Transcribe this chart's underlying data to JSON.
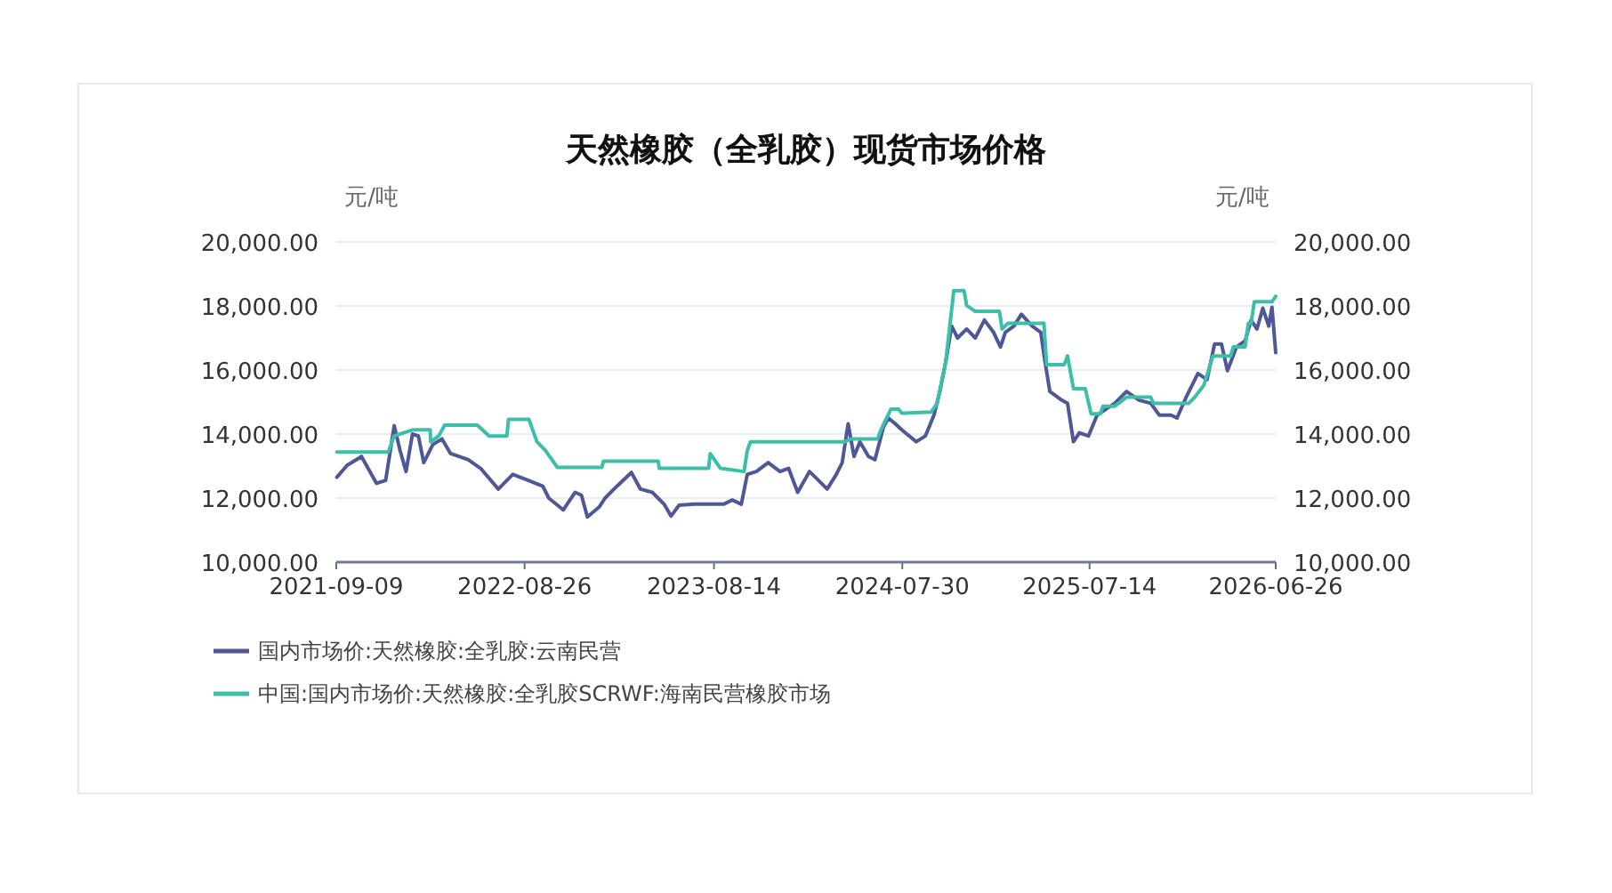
{
  "chart_data": {
    "type": "line",
    "title": "天然橡胶（全乳胶）现货市场价格",
    "ylabel": "元/吨",
    "y2label": "元/吨",
    "xlim": [
      "2021-09-09",
      "2026-06-26"
    ],
    "xticks": [
      "2021-09-09",
      "2022-08-26",
      "2023-08-14",
      "2024-07-30",
      "2025-07-14",
      "2026-06-26"
    ],
    "ylim": [
      10000,
      20000
    ],
    "yticks": [
      {
        "value": 10000,
        "label": "10,000.00"
      },
      {
        "value": 12000,
        "label": "12,000.00"
      },
      {
        "value": 14000,
        "label": "14,000.00"
      },
      {
        "value": 16000,
        "label": "16,000.00"
      },
      {
        "value": 18000,
        "label": "18,000.00"
      },
      {
        "value": 20000,
        "label": "20,000.00"
      }
    ],
    "y2lim": [
      10000,
      20000
    ],
    "y2ticks": [
      {
        "value": 10000,
        "label": "10,000.00"
      },
      {
        "value": 12000,
        "label": "12,000.00"
      },
      {
        "value": 14000,
        "label": "14,000.00"
      },
      {
        "value": 16000,
        "label": "16,000.00"
      },
      {
        "value": 18000,
        "label": "18,000.00"
      },
      {
        "value": 20000,
        "label": "20,000.00"
      }
    ],
    "grid": "y",
    "legend": "bottom",
    "marker": "none",
    "line_style": "solid",
    "series": [
      {
        "name": "国内市场价:天然橡胶:全乳胶:云南民营",
        "color": "#4e5797",
        "x": [
          "2021-09-10",
          "2021-09-29",
          "2021-10-26",
          "2021-11-23",
          "2021-12-10",
          "2021-12-26",
          "2022-01-06",
          "2022-01-17",
          "2022-01-29",
          "2022-02-09",
          "2022-02-19",
          "2022-03-08",
          "2022-03-25",
          "2022-04-10",
          "2022-05-13",
          "2022-06-05",
          "2022-07-08",
          "2022-08-04",
          "2022-09-01",
          "2022-09-29",
          "2022-10-10",
          "2022-11-06",
          "2022-11-28",
          "2022-12-10",
          "2022-12-21",
          "2023-01-12",
          "2023-01-23",
          "2023-02-14",
          "2023-03-13",
          "2023-03-30",
          "2023-04-21",
          "2023-05-13",
          "2023-05-26",
          "2023-06-10",
          "2023-07-08",
          "2023-08-04",
          "2023-09-01",
          "2023-09-17",
          "2023-10-04",
          "2023-10-15",
          "2023-11-01",
          "2023-11-23",
          "2023-12-15",
          "2023-12-31",
          "2024-01-17",
          "2024-02-08",
          "2024-02-19",
          "2024-03-12",
          "2024-03-29",
          "2024-04-09",
          "2024-04-20",
          "2024-05-01",
          "2024-05-12",
          "2024-05-28",
          "2024-06-09",
          "2024-06-25",
          "2024-07-04",
          "2024-07-17",
          "2024-07-29",
          "2024-08-25",
          "2024-09-11",
          "2024-09-27",
          "2024-10-08",
          "2024-10-19",
          "2024-10-30",
          "2024-11-10",
          "2024-11-27",
          "2024-12-13",
          "2024-12-30",
          "2025-01-16",
          "2025-01-29",
          "2025-02-07",
          "2025-02-23",
          "2025-03-09",
          "2025-03-29",
          "2025-04-14",
          "2025-04-22",
          "2025-05-01",
          "2025-05-23",
          "2025-06-03",
          "2025-06-14",
          "2025-06-25",
          "2025-07-12",
          "2025-07-28",
          "2025-08-14",
          "2025-08-30",
          "2025-09-21",
          "2025-10-14",
          "2025-11-05",
          "2025-11-21",
          "2025-12-13",
          "2025-12-24",
          "2026-01-10",
          "2026-02-01",
          "2026-02-18",
          "2026-03-04",
          "2026-03-17",
          "2026-03-28",
          "2026-04-14",
          "2026-04-30",
          "2026-05-11",
          "2026-05-22",
          "2026-06-02",
          "2026-06-13",
          "2026-06-19",
          "2026-06-26"
        ],
        "values": [
          12650,
          13020,
          13300,
          12460,
          12550,
          14260,
          13480,
          12830,
          14000,
          13940,
          13110,
          13670,
          13850,
          13390,
          13200,
          12930,
          12280,
          12740,
          12560,
          12370,
          12000,
          11630,
          12180,
          12090,
          11410,
          11720,
          12000,
          12370,
          12800,
          12280,
          12180,
          11810,
          11440,
          11780,
          11810,
          11810,
          11810,
          11940,
          11810,
          12740,
          12830,
          13110,
          12830,
          12930,
          12180,
          12830,
          12650,
          12280,
          12740,
          13110,
          14320,
          13300,
          13760,
          13300,
          13200,
          14220,
          14500,
          14320,
          14130,
          13760,
          13940,
          14590,
          15330,
          16260,
          17370,
          17000,
          17280,
          17000,
          17560,
          17180,
          16720,
          17180,
          17370,
          17740,
          17370,
          17180,
          16260,
          15330,
          15060,
          14960,
          13760,
          14040,
          13940,
          14590,
          14780,
          14960,
          15330,
          15060,
          14960,
          14590,
          14590,
          14500,
          15150,
          15890,
          15700,
          16810,
          16810,
          15980,
          16720,
          16910,
          17560,
          17280,
          17930,
          17370,
          17960,
          16540
        ]
      },
      {
        "name": "中国:国内市场价:天然橡胶:全乳胶SCRWF:海南民营橡胶市场",
        "color": "#3cbfa8",
        "x": [
          "2021-09-10",
          "2021-12-15",
          "2021-12-26",
          "2022-01-29",
          "2022-03-03",
          "2022-03-04",
          "2022-03-19",
          "2022-03-30",
          "2022-05-30",
          "2022-06-21",
          "2022-07-24",
          "2022-07-27",
          "2022-09-03",
          "2022-09-18",
          "2022-10-04",
          "2022-10-26",
          "2023-01-17",
          "2023-01-20",
          "2023-05-02",
          "2023-05-04",
          "2023-08-04",
          "2023-08-07",
          "2023-08-26",
          "2023-10-09",
          "2023-10-15",
          "2023-10-21",
          "2024-04-14",
          "2024-04-25",
          "2024-06-14",
          "2024-06-20",
          "2024-07-09",
          "2024-07-23",
          "2024-07-29",
          "2024-09-22",
          "2024-10-03",
          "2024-10-19",
          "2024-11-03",
          "2024-11-22",
          "2024-11-27",
          "2024-12-13",
          "2025-01-27",
          "2025-02-01",
          "2025-02-12",
          "2025-04-20",
          "2025-04-25",
          "2025-05-28",
          "2025-06-03",
          "2025-06-14",
          "2025-07-06",
          "2025-07-17",
          "2025-08-03",
          "2025-08-08",
          "2025-08-30",
          "2025-09-21",
          "2025-11-05",
          "2025-11-10",
          "2026-01-15",
          "2026-01-26",
          "2026-02-12",
          "2026-03-01",
          "2026-04-03",
          "2026-04-08",
          "2026-04-30",
          "2026-05-06",
          "2026-05-11",
          "2026-05-17",
          "2026-06-19",
          "2026-06-26"
        ],
        "values": [
          13440,
          13440,
          13940,
          14130,
          14130,
          13760,
          13940,
          14280,
          14280,
          13940,
          13940,
          14460,
          14460,
          13760,
          13480,
          12960,
          12960,
          13150,
          13150,
          12930,
          12930,
          13390,
          12930,
          12830,
          13480,
          13760,
          13760,
          13850,
          13850,
          14130,
          14780,
          14780,
          14650,
          14690,
          14960,
          16260,
          18480,
          18480,
          18020,
          17830,
          17830,
          17280,
          17460,
          17460,
          16170,
          16170,
          16440,
          15420,
          15420,
          14630,
          14630,
          14870,
          14870,
          15150,
          15150,
          14960,
          14960,
          15150,
          15520,
          16440,
          16440,
          16720,
          16720,
          17460,
          17460,
          18130,
          18130,
          18300
        ]
      }
    ]
  }
}
